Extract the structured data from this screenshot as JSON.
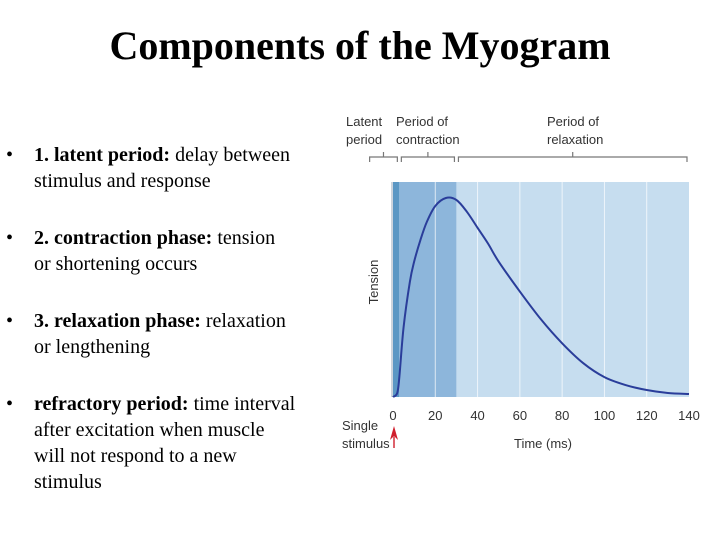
{
  "slide": {
    "title": "Components of the Myogram",
    "bullets": [
      {
        "term": "1. latent period:",
        "line1": " delay between",
        "line2": "stimulus and response"
      },
      {
        "term": "2. contraction phase:",
        "line1": " tension",
        "line2": "or shortening occurs"
      },
      {
        "term": "3. relaxation phase:",
        "line1": " relaxation",
        "line2": "or lengthening"
      },
      {
        "term": "refractory period:",
        "line1": " time interval",
        "line2": "after excitation when muscle",
        "line3": "will not respond to a new",
        "line4": "stimulus"
      }
    ]
  },
  "figure": {
    "phase_labels": {
      "latent_1": "Latent",
      "latent_2": "period",
      "contraction_1": "Period of",
      "contraction_2": "contraction",
      "relaxation_1": "Period of",
      "relaxation_2": "relaxation"
    },
    "stimulus_1": "Single",
    "stimulus_2": "stimulus",
    "colors": {
      "latent": "#5b97c4",
      "contraction": "#8db6db",
      "relaxation": "#c6ddef",
      "curve": "#2a3d9a",
      "arrow": "#d01f2d"
    }
  },
  "chart_data": {
    "type": "line",
    "xlabel": "Time (ms)",
    "ylabel": "Tension",
    "xticks": [
      0,
      20,
      40,
      60,
      80,
      100,
      120,
      140
    ],
    "xlim": [
      0,
      140
    ],
    "phases_ms": {
      "latent": [
        0,
        3
      ],
      "contraction": [
        3,
        30
      ],
      "relaxation": [
        30,
        140
      ]
    },
    "series": [
      {
        "x": [
          0,
          2,
          3,
          5,
          8,
          10,
          13,
          16,
          20,
          25,
          30,
          35,
          40,
          45,
          50,
          60,
          70,
          80,
          90,
          100,
          110,
          120,
          130,
          140
        ],
        "values": [
          0,
          0.02,
          0.1,
          0.35,
          0.58,
          0.68,
          0.79,
          0.88,
          0.96,
          1.0,
          0.99,
          0.93,
          0.85,
          0.77,
          0.68,
          0.53,
          0.39,
          0.27,
          0.17,
          0.1,
          0.06,
          0.035,
          0.02,
          0.015
        ]
      }
    ]
  }
}
